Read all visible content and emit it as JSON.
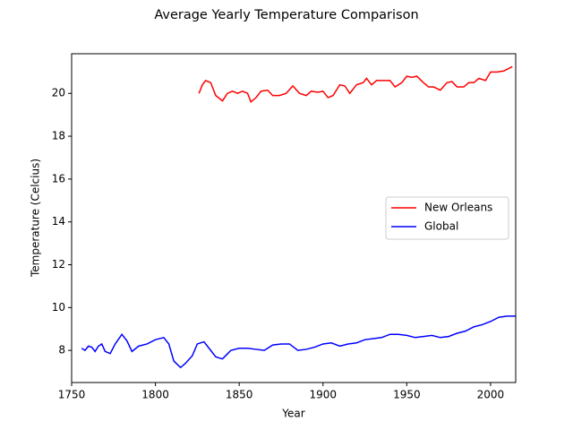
{
  "chart_data": {
    "type": "line",
    "title": "Average Yearly Temperature Comparison",
    "x_label": "Year",
    "y_label": "Temperature (Celcius)",
    "xlim": [
      1750,
      2015
    ],
    "xticks": [
      1750,
      1800,
      1850,
      1900,
      1950,
      2000
    ],
    "ylim": [
      6.5,
      21.85
    ],
    "yticks": [
      8,
      10,
      12,
      14,
      16,
      18,
      20
    ],
    "legend": "center right",
    "series": [
      {
        "name": "New Orleans",
        "color": "#ff0000",
        "x": [
          1826,
          1828,
          1830,
          1833,
          1836,
          1840,
          1843,
          1846,
          1849,
          1852,
          1855,
          1857,
          1860,
          1863,
          1867,
          1870,
          1874,
          1878,
          1882,
          1886,
          1890,
          1893,
          1897,
          1900,
          1903,
          1906,
          1910,
          1913,
          1916,
          1920,
          1924,
          1926,
          1929,
          1932,
          1936,
          1940,
          1943,
          1947,
          1950,
          1953,
          1956,
          1960,
          1963,
          1966,
          1970,
          1974,
          1977,
          1980,
          1984,
          1987,
          1990,
          1993,
          1997,
          2000,
          2004,
          2008,
          2013
        ],
        "values": [
          20.0,
          20.4,
          20.6,
          20.5,
          19.9,
          19.65,
          20.0,
          20.1,
          20.0,
          20.1,
          20.0,
          19.6,
          19.8,
          20.1,
          20.15,
          19.9,
          19.9,
          20.0,
          20.35,
          20.0,
          19.9,
          20.1,
          20.05,
          20.1,
          19.8,
          19.9,
          20.4,
          20.35,
          20.0,
          20.4,
          20.5,
          20.7,
          20.4,
          20.6,
          20.6,
          20.6,
          20.3,
          20.5,
          20.8,
          20.75,
          20.8,
          20.5,
          20.3,
          20.3,
          20.15,
          20.5,
          20.55,
          20.3,
          20.3,
          20.5,
          20.5,
          20.7,
          20.6,
          21.0,
          21.0,
          21.05,
          21.25
        ]
      },
      {
        "name": "Global",
        "color": "#0000ff",
        "x": [
          1756,
          1758,
          1760,
          1762,
          1764,
          1766,
          1768,
          1770,
          1773,
          1776,
          1780,
          1783,
          1786,
          1790,
          1795,
          1800,
          1805,
          1808,
          1811,
          1815,
          1818,
          1822,
          1825,
          1829,
          1833,
          1836,
          1840,
          1845,
          1850,
          1855,
          1860,
          1865,
          1870,
          1875,
          1880,
          1885,
          1890,
          1895,
          1900,
          1905,
          1910,
          1915,
          1920,
          1925,
          1930,
          1935,
          1940,
          1945,
          1950,
          1955,
          1960,
          1965,
          1970,
          1975,
          1980,
          1985,
          1990,
          1995,
          2000,
          2005,
          2010,
          2015
        ],
        "values": [
          8.1,
          8.0,
          8.2,
          8.15,
          7.95,
          8.2,
          8.3,
          7.95,
          7.85,
          8.3,
          8.75,
          8.45,
          7.95,
          8.2,
          8.3,
          8.5,
          8.6,
          8.3,
          7.5,
          7.2,
          7.4,
          7.75,
          8.3,
          8.4,
          8.0,
          7.7,
          7.6,
          8.0,
          8.1,
          8.1,
          8.05,
          8.0,
          8.25,
          8.3,
          8.3,
          8.0,
          8.05,
          8.15,
          8.3,
          8.35,
          8.2,
          8.3,
          8.35,
          8.5,
          8.55,
          8.6,
          8.75,
          8.75,
          8.7,
          8.6,
          8.65,
          8.7,
          8.6,
          8.65,
          8.8,
          8.9,
          9.1,
          9.2,
          9.35,
          9.55,
          9.6,
          9.6
        ]
      }
    ]
  }
}
